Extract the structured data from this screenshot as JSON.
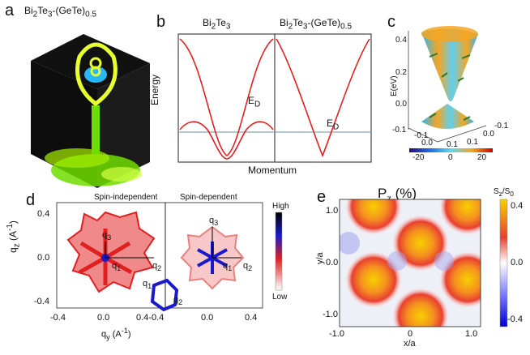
{
  "panels": {
    "a": {
      "letter": "a",
      "title_main": "Bi",
      "title_sub1": "2",
      "title_mid": "Te",
      "title_sub2": "3",
      "title_rest": "-(GeTe)",
      "title_sub3": "0.5"
    },
    "b": {
      "letter": "b",
      "left_title_main": "Bi",
      "left_sub1": "2",
      "left_mid": "Te",
      "left_sub2": "3",
      "right_title_main": "Bi",
      "right_sub1": "2",
      "right_mid": "Te",
      "right_sub2": "3",
      "right_rest": "-(GeTe)",
      "right_sub3": "0.5",
      "ylabel": "Energy",
      "xlabel": "Momentum",
      "ed_main": "E",
      "ed_sub": "D"
    },
    "c": {
      "letter": "c",
      "zlabel": "E(eV)",
      "z_ticks": [
        "0.4",
        "0.2",
        "0.0",
        "-0.1"
      ],
      "x_ticks": [
        "-0.1",
        "0.0",
        "0.1"
      ],
      "y_ticks": [
        "0.1",
        "0.0",
        "-0.1"
      ],
      "colorbar_ticks": [
        "-20",
        "0",
        "20"
      ]
    },
    "d": {
      "letter": "d",
      "left_title": "Spin-independent",
      "right_title": "Spin-dependent",
      "ylabel_main": "q",
      "ylabel_sub": "z",
      "ylabel_unit": " (A",
      "xlabel_main": "q",
      "xlabel_sub": "y",
      "xlabel_unit": " (A",
      "unit_sup": "-1",
      "unit_close": ")",
      "y_ticks": [
        "0.4",
        "0.0",
        "-0.4"
      ],
      "x_ticks": [
        "-0.4",
        "0.0",
        "0.4-0.4",
        "0.0",
        "0.4"
      ],
      "q_labels": [
        "q",
        "q",
        "q",
        "q",
        "q",
        "q",
        "q",
        "q"
      ],
      "q_subs": [
        "3",
        "1",
        "2",
        "3",
        "1",
        "2",
        "1",
        "2"
      ],
      "legend_high": "High",
      "legend_low": "Low"
    },
    "e": {
      "letter": "e",
      "title_main": "P",
      "title_sub": "z",
      "title_rest": " (%)",
      "ylabel": "y/a",
      "xlabel": "x/a",
      "y_ticks": [
        "1.0",
        "0.0",
        "-1.0"
      ],
      "x_ticks": [
        "-1.0",
        "0",
        "1.0"
      ],
      "cb_title_main": "S",
      "cb_title_sub1": "z",
      "cb_title_mid": "/S",
      "cb_title_sub2": "0",
      "cb_ticks": [
        "0.4",
        "0.0",
        "-0.4"
      ]
    }
  },
  "colors": {
    "red": "#e02020",
    "blue": "#1a1acc",
    "green": "#7ee000",
    "yellow": "#e8ff30"
  }
}
